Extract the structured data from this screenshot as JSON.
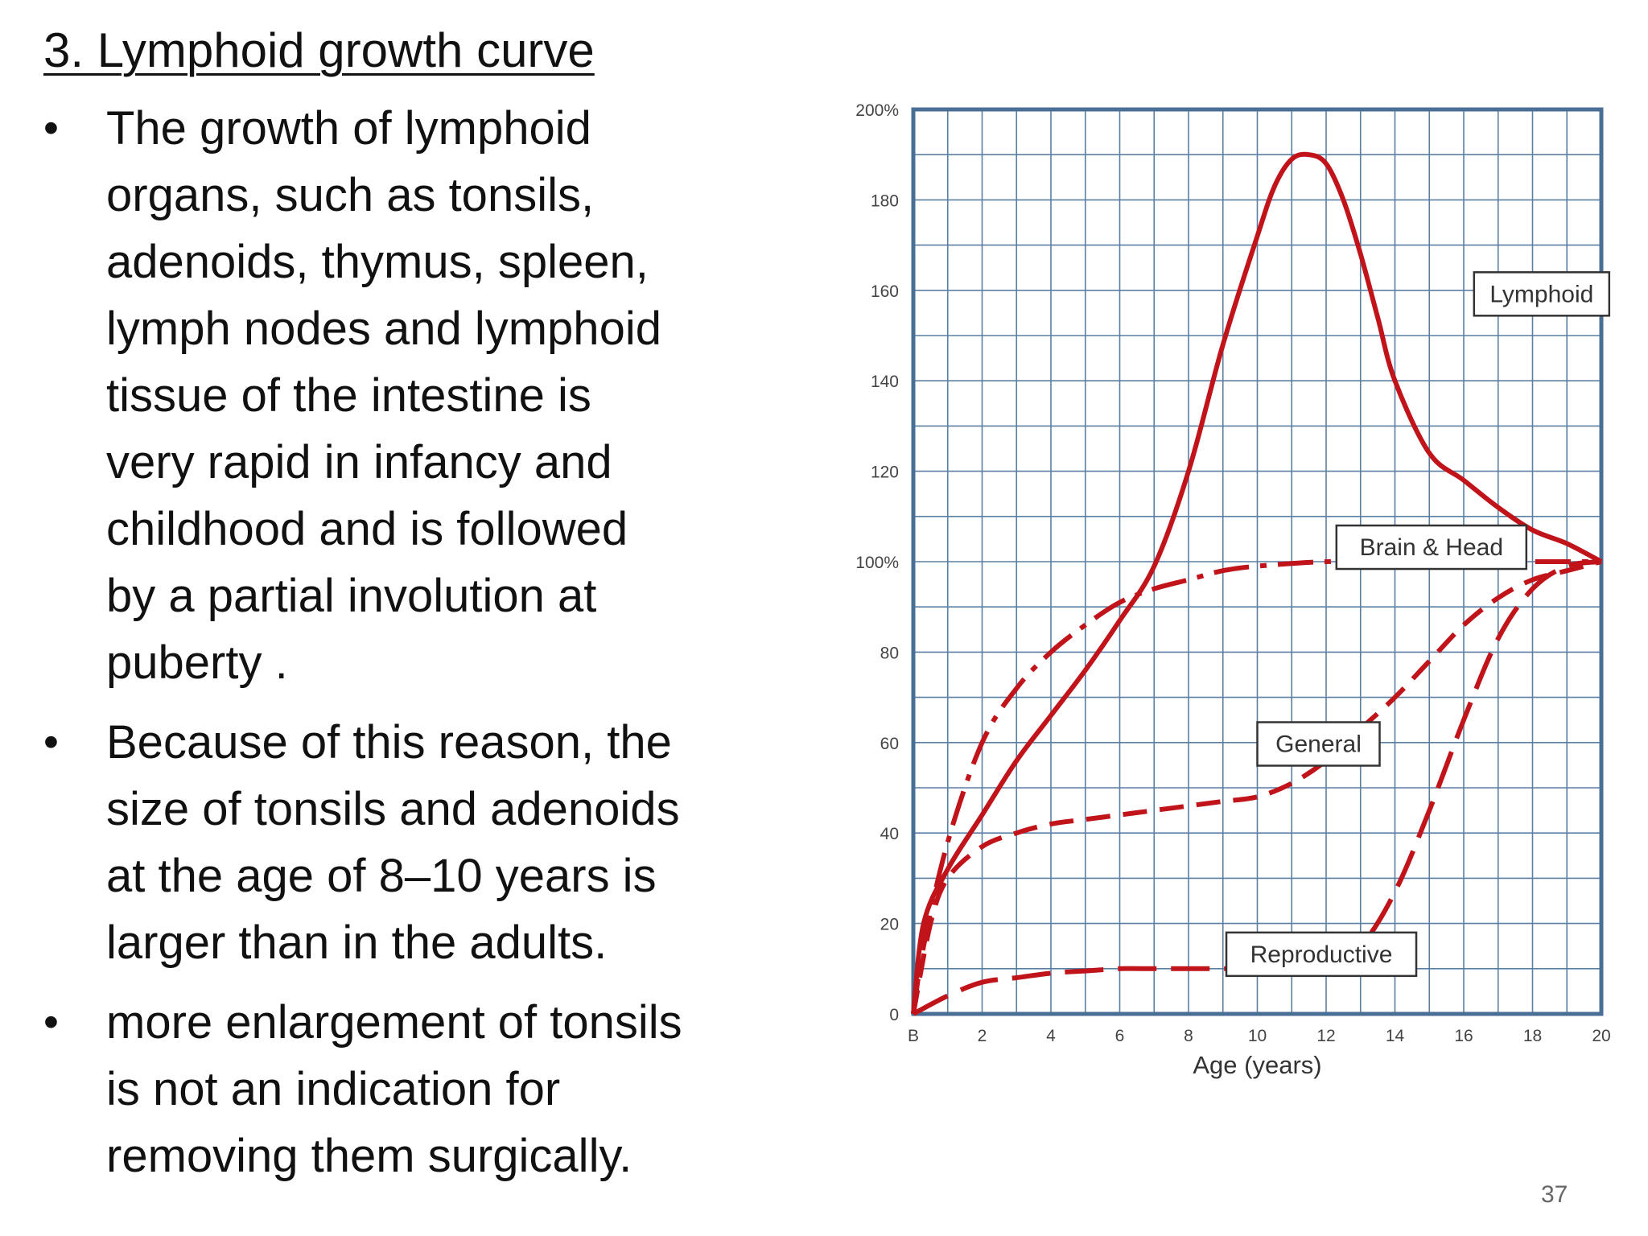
{
  "slide": {
    "title": "3.  Lymphoid growth curve",
    "bullets": [
      {
        "lines": [
          "The growth of lymphoid",
          "organs, such as tonsils,",
          "adenoids, thymus, spleen,",
          "lymph nodes and lymphoid",
          "tissue of the intestine is",
          "very rapid in infancy and",
          "childhood and is followed",
          "by a partial involution at",
          "puberty ."
        ]
      },
      {
        "lines": [
          "Because of this reason, the",
          "size of tonsils and adenoids",
          "at the age of 8–10 years is",
          "larger than in the adults."
        ]
      },
      {
        "lines": [
          "more enlargement of tonsils",
          "is not an indication for",
          "removing them surgically."
        ]
      }
    ],
    "bullet_glyph": "•",
    "page_number": "37"
  },
  "chart_data": {
    "type": "line",
    "xlabel": "Age (years)",
    "ylabel": "",
    "xlim": [
      0,
      20
    ],
    "ylim": [
      0,
      200
    ],
    "grid": true,
    "x_ticks": [
      {
        "value": 0,
        "label": "B"
      },
      {
        "value": 2,
        "label": "2"
      },
      {
        "value": 4,
        "label": "4"
      },
      {
        "value": 6,
        "label": "6"
      },
      {
        "value": 8,
        "label": "8"
      },
      {
        "value": 10,
        "label": "10"
      },
      {
        "value": 12,
        "label": "12"
      },
      {
        "value": 14,
        "label": "14"
      },
      {
        "value": 16,
        "label": "16"
      },
      {
        "value": 18,
        "label": "18"
      },
      {
        "value": 20,
        "label": "20"
      }
    ],
    "y_ticks": [
      {
        "value": 0,
        "label": "0"
      },
      {
        "value": 20,
        "label": "20"
      },
      {
        "value": 40,
        "label": "40"
      },
      {
        "value": 60,
        "label": "60"
      },
      {
        "value": 80,
        "label": "80"
      },
      {
        "value": 100,
        "label": "100%"
      },
      {
        "value": 120,
        "label": "120"
      },
      {
        "value": 140,
        "label": "140"
      },
      {
        "value": 160,
        "label": "160"
      },
      {
        "value": 180,
        "label": "180"
      },
      {
        "value": 200,
        "label": "200%"
      }
    ],
    "colors": {
      "line": "#c0141a",
      "grid": "#5a7fa3",
      "frame": "#4a6f96",
      "tick_text": "#444444"
    },
    "series": [
      {
        "name": "Lymphoid",
        "style": "solid",
        "label_at": {
          "x": 16.3,
          "y": 164
        },
        "x": [
          0,
          0.3,
          1,
          2,
          3,
          4,
          5,
          6,
          7,
          8,
          9,
          10,
          10.5,
          11,
          11.5,
          12,
          12.5,
          13,
          13.5,
          14,
          15,
          16,
          17,
          18,
          19,
          20
        ],
        "y": [
          0,
          20,
          32,
          44,
          56,
          66,
          76,
          87,
          99,
          120,
          148,
          172,
          183,
          189,
          190,
          188,
          180,
          168,
          154,
          140,
          124,
          118,
          112,
          107,
          104,
          100
        ]
      },
      {
        "name": "Brain & Head",
        "style": "dashdot",
        "label_at": {
          "x": 12.3,
          "y": 108
        },
        "x": [
          0,
          0.3,
          1,
          2,
          3,
          4,
          5,
          6,
          7,
          8,
          9,
          10,
          12,
          14,
          16,
          18,
          20
        ],
        "y": [
          0,
          15,
          38,
          60,
          72,
          80,
          86,
          91,
          94,
          96,
          98,
          99,
          100,
          100,
          100,
          100,
          100
        ]
      },
      {
        "name": "General",
        "style": "dashed",
        "label_at": {
          "x": 10,
          "y": 64.5
        },
        "x": [
          0,
          0.5,
          1,
          2,
          3,
          4,
          5,
          6,
          7,
          8,
          9,
          10,
          11,
          12,
          13,
          14,
          15,
          16,
          17,
          18,
          19,
          20
        ],
        "y": [
          0,
          20,
          30,
          37,
          40,
          42,
          43,
          44,
          45,
          46,
          47,
          48,
          51,
          56,
          63,
          70,
          78,
          86,
          92,
          96,
          98,
          100
        ]
      },
      {
        "name": "Reproductive",
        "style": "longdash",
        "label_at": {
          "x": 9.1,
          "y": 18
        },
        "x": [
          0,
          1,
          2,
          3,
          4,
          5,
          6,
          7,
          8,
          9,
          10,
          11,
          12,
          13,
          14,
          15,
          16,
          17,
          18,
          19,
          20
        ],
        "y": [
          0,
          4,
          7,
          8,
          9,
          9.5,
          10,
          10,
          10,
          10,
          10,
          10,
          11,
          15,
          27,
          45,
          65,
          83,
          94,
          99,
          100
        ]
      }
    ]
  }
}
